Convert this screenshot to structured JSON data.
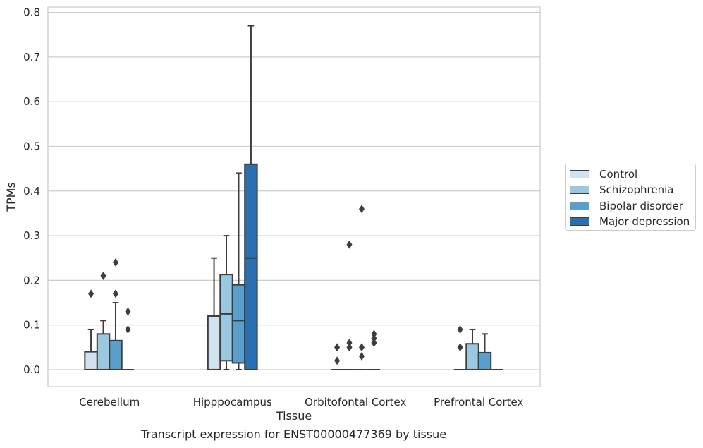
{
  "chart_data": {
    "type": "box",
    "xlabel": "Tissue",
    "ylabel": "TPMs",
    "caption": "Transcript expression for ENST00000477369 by tissue",
    "ylim": [
      -0.038,
      0.812
    ],
    "yticks": [
      0.0,
      0.1,
      0.2,
      0.3,
      0.4,
      0.5,
      0.6,
      0.7,
      0.8
    ],
    "ytick_labels": [
      "0.0",
      "0.1",
      "0.2",
      "0.3",
      "0.4",
      "0.5",
      "0.6",
      "0.7",
      "0.8"
    ],
    "grid": true,
    "legend_position": "right",
    "categories": [
      "Cerebellum",
      "Hipppocampus",
      "Orbitofontal Cortex",
      "Prefrontal Cortex"
    ],
    "series": [
      {
        "name": "Control",
        "color": "#d2e1f0",
        "boxes": [
          {
            "q1": 0.0,
            "median": 0.0,
            "q3": 0.04,
            "whisker_low": 0.0,
            "whisker_high": 0.09,
            "outliers": [
              0.17
            ]
          },
          {
            "q1": 0.0,
            "median": 0.0,
            "q3": 0.12,
            "whisker_low": 0.0,
            "whisker_high": 0.25,
            "outliers": []
          },
          {
            "q1": 0.0,
            "median": 0.0,
            "q3": 0.0,
            "whisker_low": 0.0,
            "whisker_high": 0.0,
            "outliers": [
              0.02,
              0.05
            ]
          },
          {
            "q1": 0.0,
            "median": 0.0,
            "q3": 0.0,
            "whisker_low": 0.0,
            "whisker_high": 0.0,
            "outliers": [
              0.05,
              0.09
            ]
          }
        ]
      },
      {
        "name": "Schizophrenia",
        "color": "#9ac8e0",
        "boxes": [
          {
            "q1": 0.0,
            "median": 0.0,
            "q3": 0.08,
            "whisker_low": 0.0,
            "whisker_high": 0.11,
            "outliers": [
              0.21
            ]
          },
          {
            "q1": 0.02,
            "median": 0.125,
            "q3": 0.213,
            "whisker_low": 0.0,
            "whisker_high": 0.3,
            "outliers": []
          },
          {
            "q1": 0.0,
            "median": 0.0,
            "q3": 0.0,
            "whisker_low": 0.0,
            "whisker_high": 0.0,
            "outliers": [
              0.05,
              0.06,
              0.28
            ]
          },
          {
            "q1": 0.0,
            "median": 0.0,
            "q3": 0.058,
            "whisker_low": 0.0,
            "whisker_high": 0.09,
            "outliers": []
          }
        ]
      },
      {
        "name": "Bipolar disorder",
        "color": "#5a9fcb",
        "boxes": [
          {
            "q1": 0.0,
            "median": 0.0,
            "q3": 0.065,
            "whisker_low": 0.0,
            "whisker_high": 0.15,
            "outliers": [
              0.17,
              0.24
            ]
          },
          {
            "q1": 0.015,
            "median": 0.11,
            "q3": 0.19,
            "whisker_low": 0.0,
            "whisker_high": 0.44,
            "outliers": []
          },
          {
            "q1": 0.0,
            "median": 0.0,
            "q3": 0.0,
            "whisker_low": 0.0,
            "whisker_high": 0.0,
            "outliers": [
              0.03,
              0.05,
              0.36
            ]
          },
          {
            "q1": 0.0,
            "median": 0.0,
            "q3": 0.038,
            "whisker_low": 0.0,
            "whisker_high": 0.08,
            "outliers": []
          }
        ]
      },
      {
        "name": "Major depression",
        "color": "#2c6fb0",
        "boxes": [
          {
            "q1": 0.0,
            "median": 0.0,
            "q3": 0.0,
            "whisker_low": 0.0,
            "whisker_high": 0.0,
            "outliers": [
              0.09,
              0.13
            ]
          },
          {
            "q1": 0.0,
            "median": 0.25,
            "q3": 0.46,
            "whisker_low": 0.0,
            "whisker_high": 0.77,
            "outliers": []
          },
          {
            "q1": 0.0,
            "median": 0.0,
            "q3": 0.0,
            "whisker_low": 0.0,
            "whisker_high": 0.0,
            "outliers": [
              0.06,
              0.07,
              0.08
            ]
          },
          {
            "q1": 0.0,
            "median": 0.0,
            "q3": 0.0,
            "whisker_low": 0.0,
            "whisker_high": 0.0,
            "outliers": []
          }
        ]
      }
    ]
  }
}
